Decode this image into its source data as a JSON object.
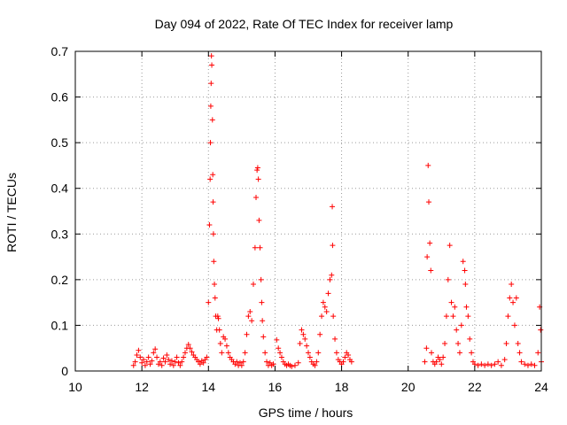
{
  "chart_data": {
    "type": "scatter",
    "title": "Day 094 of 2022, Rate Of TEC Index for receiver lamp",
    "xlabel": "GPS time / hours",
    "ylabel": "ROTI / TECUs",
    "xlim": [
      10,
      24
    ],
    "ylim": [
      0,
      0.7
    ],
    "grid": true,
    "marker": "+",
    "x_ticks": [
      10,
      12,
      14,
      16,
      18,
      20,
      22,
      24
    ],
    "x_tick_labels": [
      "10",
      "12",
      "14",
      "16",
      "18",
      "20",
      "22",
      "24"
    ],
    "y_ticks": [
      0,
      0.1,
      0.2,
      0.3,
      0.4,
      0.5,
      0.6,
      0.7
    ],
    "y_tick_labels": [
      "0",
      "0.1",
      "0.2",
      "0.3",
      "0.4",
      "0.5",
      "0.6",
      "0.7"
    ],
    "colors": {
      "marker": "#ff0000",
      "grid": "#9a9a9a",
      "axis": "#000000"
    },
    "series": [
      {
        "name": "ROTI",
        "points": [
          [
            11.75,
            0.012
          ],
          [
            11.8,
            0.02
          ],
          [
            11.85,
            0.035
          ],
          [
            11.9,
            0.045
          ],
          [
            11.95,
            0.03
          ],
          [
            12.0,
            0.018
          ],
          [
            12.05,
            0.025
          ],
          [
            12.1,
            0.012
          ],
          [
            12.15,
            0.02
          ],
          [
            12.2,
            0.03
          ],
          [
            12.25,
            0.015
          ],
          [
            12.3,
            0.022
          ],
          [
            12.35,
            0.04
          ],
          [
            12.4,
            0.048
          ],
          [
            12.45,
            0.03
          ],
          [
            12.5,
            0.015
          ],
          [
            12.55,
            0.02
          ],
          [
            12.6,
            0.012
          ],
          [
            12.65,
            0.028
          ],
          [
            12.7,
            0.02
          ],
          [
            12.75,
            0.035
          ],
          [
            12.8,
            0.025
          ],
          [
            12.85,
            0.015
          ],
          [
            12.9,
            0.022
          ],
          [
            12.95,
            0.012
          ],
          [
            13.0,
            0.02
          ],
          [
            13.05,
            0.03
          ],
          [
            13.1,
            0.018
          ],
          [
            13.15,
            0.012
          ],
          [
            13.2,
            0.02
          ],
          [
            13.25,
            0.03
          ],
          [
            13.3,
            0.04
          ],
          [
            13.35,
            0.05
          ],
          [
            13.4,
            0.058
          ],
          [
            13.45,
            0.05
          ],
          [
            13.5,
            0.042
          ],
          [
            13.55,
            0.035
          ],
          [
            13.6,
            0.03
          ],
          [
            13.65,
            0.025
          ],
          [
            13.7,
            0.02
          ],
          [
            13.75,
            0.015
          ],
          [
            13.8,
            0.022
          ],
          [
            13.85,
            0.018
          ],
          [
            13.9,
            0.025
          ],
          [
            13.95,
            0.03
          ],
          [
            14.0,
            0.15
          ],
          [
            14.03,
            0.32
          ],
          [
            14.05,
            0.42
          ],
          [
            14.06,
            0.5
          ],
          [
            14.07,
            0.58
          ],
          [
            14.08,
            0.63
          ],
          [
            14.09,
            0.69
          ],
          [
            14.1,
            0.67
          ],
          [
            14.12,
            0.55
          ],
          [
            14.13,
            0.43
          ],
          [
            14.14,
            0.37
          ],
          [
            14.15,
            0.3
          ],
          [
            14.16,
            0.24
          ],
          [
            14.18,
            0.19
          ],
          [
            14.2,
            0.16
          ],
          [
            14.22,
            0.12
          ],
          [
            14.25,
            0.09
          ],
          [
            14.28,
            0.12
          ],
          [
            14.3,
            0.115
          ],
          [
            14.33,
            0.09
          ],
          [
            14.36,
            0.06
          ],
          [
            14.4,
            0.04
          ],
          [
            14.45,
            0.075
          ],
          [
            14.5,
            0.07
          ],
          [
            14.55,
            0.055
          ],
          [
            14.6,
            0.04
          ],
          [
            14.65,
            0.03
          ],
          [
            14.7,
            0.025
          ],
          [
            14.75,
            0.02
          ],
          [
            14.8,
            0.015
          ],
          [
            14.85,
            0.02
          ],
          [
            14.9,
            0.012
          ],
          [
            14.95,
            0.018
          ],
          [
            15.0,
            0.012
          ],
          [
            15.05,
            0.02
          ],
          [
            15.1,
            0.04
          ],
          [
            15.15,
            0.08
          ],
          [
            15.2,
            0.12
          ],
          [
            15.25,
            0.13
          ],
          [
            15.3,
            0.11
          ],
          [
            15.35,
            0.19
          ],
          [
            15.4,
            0.27
          ],
          [
            15.43,
            0.38
          ],
          [
            15.46,
            0.44
          ],
          [
            15.48,
            0.445
          ],
          [
            15.5,
            0.42
          ],
          [
            15.52,
            0.33
          ],
          [
            15.55,
            0.27
          ],
          [
            15.58,
            0.2
          ],
          [
            15.6,
            0.15
          ],
          [
            15.62,
            0.11
          ],
          [
            15.65,
            0.075
          ],
          [
            15.7,
            0.04
          ],
          [
            15.75,
            0.02
          ],
          [
            15.8,
            0.012
          ],
          [
            15.85,
            0.018
          ],
          [
            15.9,
            0.012
          ],
          [
            15.95,
            0.015
          ],
          [
            16.05,
            0.068
          ],
          [
            16.1,
            0.05
          ],
          [
            16.15,
            0.04
          ],
          [
            16.2,
            0.03
          ],
          [
            16.25,
            0.02
          ],
          [
            16.3,
            0.015
          ],
          [
            16.35,
            0.012
          ],
          [
            16.4,
            0.015
          ],
          [
            16.45,
            0.012
          ],
          [
            16.5,
            0.01
          ],
          [
            16.6,
            0.012
          ],
          [
            16.7,
            0.018
          ],
          [
            16.75,
            0.06
          ],
          [
            16.8,
            0.09
          ],
          [
            16.85,
            0.08
          ],
          [
            16.9,
            0.07
          ],
          [
            16.95,
            0.055
          ],
          [
            17.0,
            0.04
          ],
          [
            17.05,
            0.03
          ],
          [
            17.1,
            0.02
          ],
          [
            17.15,
            0.015
          ],
          [
            17.2,
            0.012
          ],
          [
            17.25,
            0.02
          ],
          [
            17.3,
            0.04
          ],
          [
            17.35,
            0.08
          ],
          [
            17.4,
            0.12
          ],
          [
            17.45,
            0.15
          ],
          [
            17.5,
            0.14
          ],
          [
            17.55,
            0.13
          ],
          [
            17.6,
            0.17
          ],
          [
            17.65,
            0.2
          ],
          [
            17.7,
            0.21
          ],
          [
            17.72,
            0.36
          ],
          [
            17.73,
            0.275
          ],
          [
            17.75,
            0.12
          ],
          [
            17.8,
            0.07
          ],
          [
            17.85,
            0.04
          ],
          [
            17.9,
            0.025
          ],
          [
            17.95,
            0.02
          ],
          [
            18.0,
            0.015
          ],
          [
            18.05,
            0.02
          ],
          [
            18.1,
            0.03
          ],
          [
            18.15,
            0.04
          ],
          [
            18.2,
            0.035
          ],
          [
            18.25,
            0.025
          ],
          [
            18.3,
            0.02
          ],
          [
            20.5,
            0.02
          ],
          [
            20.55,
            0.05
          ],
          [
            20.57,
            0.25
          ],
          [
            20.6,
            0.45
          ],
          [
            20.62,
            0.37
          ],
          [
            20.65,
            0.28
          ],
          [
            20.68,
            0.22
          ],
          [
            20.7,
            0.04
          ],
          [
            20.75,
            0.02
          ],
          [
            20.8,
            0.015
          ],
          [
            20.85,
            0.02
          ],
          [
            20.9,
            0.03
          ],
          [
            20.95,
            0.025
          ],
          [
            21.0,
            0.015
          ],
          [
            21.05,
            0.03
          ],
          [
            21.1,
            0.06
          ],
          [
            21.15,
            0.12
          ],
          [
            21.2,
            0.2
          ],
          [
            21.25,
            0.275
          ],
          [
            21.3,
            0.15
          ],
          [
            21.35,
            0.12
          ],
          [
            21.4,
            0.14
          ],
          [
            21.45,
            0.09
          ],
          [
            21.5,
            0.06
          ],
          [
            21.55,
            0.04
          ],
          [
            21.6,
            0.1
          ],
          [
            21.65,
            0.24
          ],
          [
            21.7,
            0.22
          ],
          [
            21.72,
            0.19
          ],
          [
            21.75,
            0.14
          ],
          [
            21.8,
            0.12
          ],
          [
            21.85,
            0.07
          ],
          [
            21.9,
            0.04
          ],
          [
            21.95,
            0.02
          ],
          [
            22.0,
            0.015
          ],
          [
            22.1,
            0.012
          ],
          [
            22.2,
            0.015
          ],
          [
            22.3,
            0.012
          ],
          [
            22.4,
            0.015
          ],
          [
            22.5,
            0.012
          ],
          [
            22.6,
            0.015
          ],
          [
            22.7,
            0.02
          ],
          [
            22.8,
            0.012
          ],
          [
            22.9,
            0.025
          ],
          [
            22.95,
            0.06
          ],
          [
            23.0,
            0.12
          ],
          [
            23.05,
            0.16
          ],
          [
            23.1,
            0.19
          ],
          [
            23.15,
            0.15
          ],
          [
            23.2,
            0.1
          ],
          [
            23.25,
            0.16
          ],
          [
            23.3,
            0.06
          ],
          [
            23.35,
            0.04
          ],
          [
            23.4,
            0.02
          ],
          [
            23.5,
            0.015
          ],
          [
            23.6,
            0.012
          ],
          [
            23.7,
            0.015
          ],
          [
            23.8,
            0.012
          ],
          [
            23.9,
            0.04
          ],
          [
            23.95,
            0.14
          ],
          [
            23.98,
            0.09
          ],
          [
            24.0,
            0.02
          ]
        ]
      }
    ]
  }
}
